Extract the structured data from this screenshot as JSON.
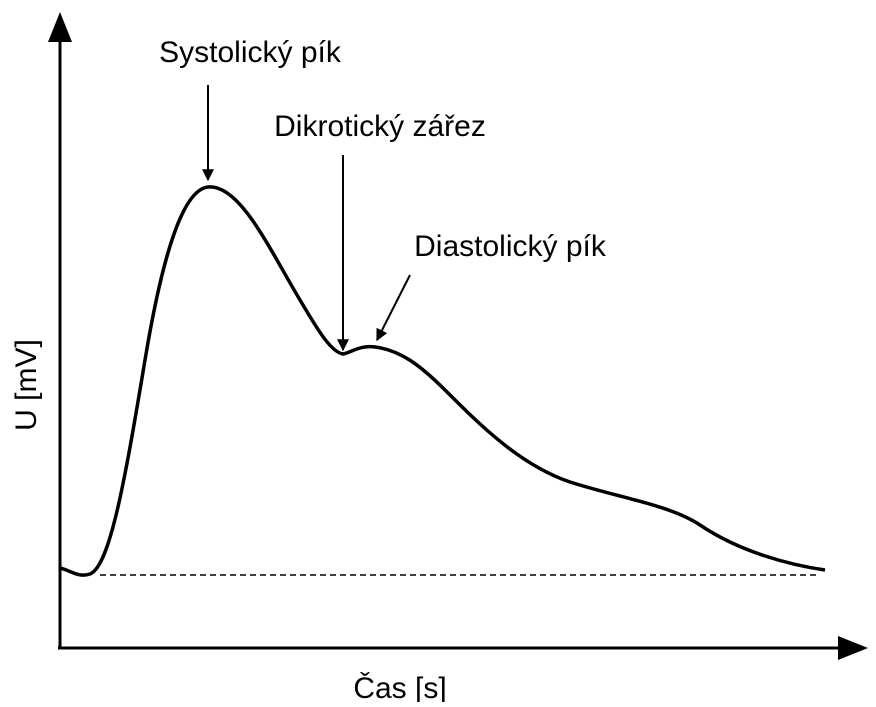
{
  "diagram": {
    "annotations": [
      {
        "label": "Systolický pík"
      },
      {
        "label": "Dikrotický zářez"
      },
      {
        "label": "Diastolický pík"
      }
    ],
    "y_axis_label": "U [mV]",
    "x_axis_label": "Čas [s]"
  }
}
